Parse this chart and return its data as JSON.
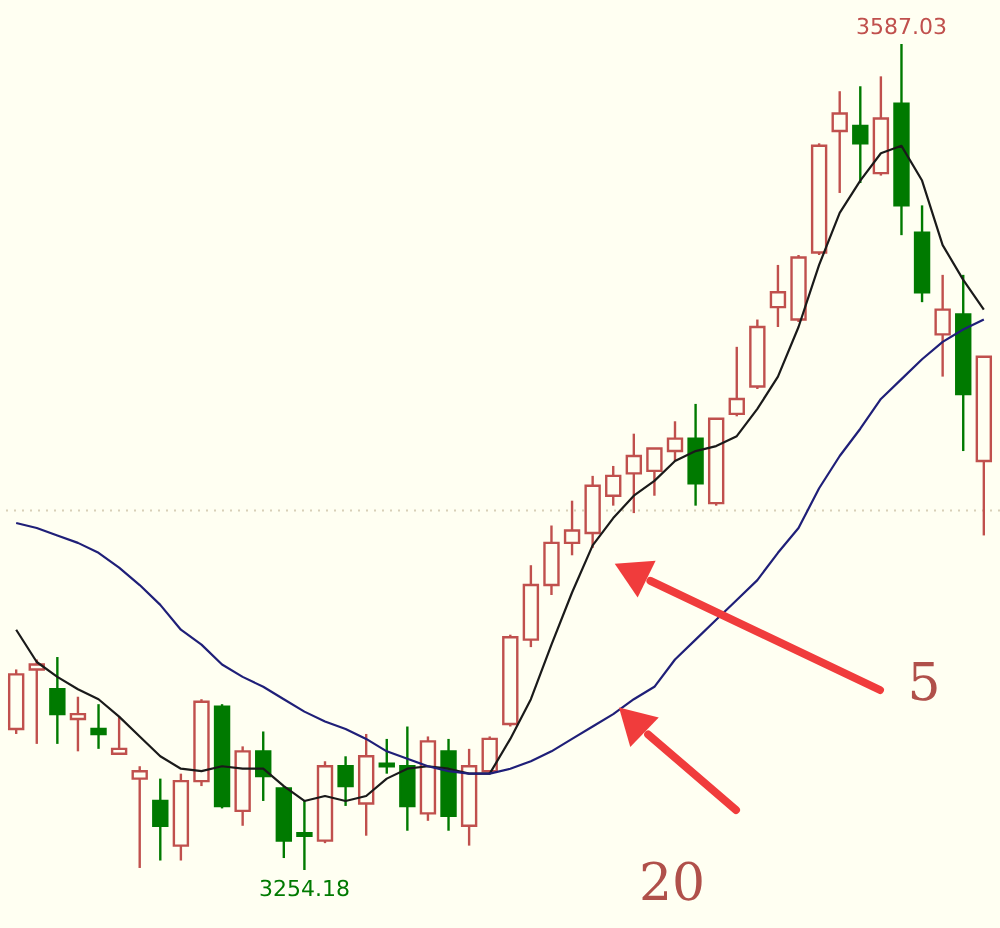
{
  "chart_data": {
    "type": "candlestick",
    "categories": [
      null,
      null,
      null,
      null,
      null,
      null,
      null,
      null,
      null,
      null,
      null,
      null,
      null,
      null,
      null,
      null,
      null,
      null,
      null,
      null,
      null,
      null,
      null,
      null,
      null,
      null,
      null,
      null,
      null,
      null,
      null,
      null,
      null,
      null,
      null,
      null,
      null,
      null,
      null,
      null,
      null,
      null,
      null,
      null,
      null,
      null,
      null,
      null
    ],
    "ohlc": [
      [
        3311,
        3335,
        3309,
        3333
      ],
      [
        3335,
        3339,
        3305,
        3337
      ],
      [
        3327,
        3340,
        3305,
        3317
      ],
      [
        3315,
        3324,
        3302,
        3317
      ],
      [
        3311,
        3321,
        3303,
        3309
      ],
      [
        3301,
        3316,
        3301,
        3303
      ],
      [
        3291,
        3296,
        3255,
        3294
      ],
      [
        3282,
        3291,
        3258,
        3272
      ],
      [
        3264,
        3293,
        3258,
        3290
      ],
      [
        3290,
        3323,
        3288,
        3322
      ],
      [
        3320,
        3321,
        3279,
        3280
      ],
      [
        3278,
        3304,
        3272,
        3302
      ],
      [
        3302,
        3310,
        3282,
        3292
      ],
      [
        3287,
        3288,
        3259,
        3266
      ],
      [
        3269,
        3282,
        3254.18,
        3268
      ],
      [
        3266,
        3298,
        3265,
        3296
      ],
      [
        3296,
        3300,
        3280,
        3288
      ],
      [
        3281,
        3309,
        3268,
        3300
      ],
      [
        3297,
        3307,
        3293,
        3296
      ],
      [
        3296,
        3312,
        3270,
        3280
      ],
      [
        3277,
        3308,
        3274,
        3306
      ],
      [
        3302,
        3307,
        3270,
        3276
      ],
      [
        3272,
        3303,
        3264,
        3296
      ],
      [
        3294,
        3308,
        3293,
        3307
      ],
      [
        3313,
        3349,
        3312,
        3348
      ],
      [
        3347,
        3377,
        3344,
        3369
      ],
      [
        3369,
        3393,
        3365,
        3386
      ],
      [
        3386,
        3403,
        3381,
        3391
      ],
      [
        3390,
        3413,
        3384,
        3409
      ],
      [
        3405,
        3417,
        3401,
        3413
      ],
      [
        3414,
        3430,
        3398,
        3421
      ],
      [
        3415,
        3424,
        3405,
        3424
      ],
      [
        3423,
        3435,
        3419,
        3428
      ],
      [
        3428,
        3442,
        3401,
        3410
      ],
      [
        3402,
        3436,
        3401,
        3436
      ],
      [
        3438,
        3465,
        3437,
        3444
      ],
      [
        3449,
        3476,
        3448,
        3473
      ],
      [
        3481,
        3498,
        3473,
        3487
      ],
      [
        3476,
        3502,
        3475,
        3501
      ],
      [
        3503,
        3547,
        3502,
        3546
      ],
      [
        3552,
        3568,
        3527,
        3559
      ],
      [
        3554,
        3570,
        3531,
        3547
      ],
      [
        3535,
        3574,
        3534,
        3557
      ],
      [
        3563,
        3587.03,
        3510,
        3522
      ],
      [
        3511,
        3522,
        3483,
        3487
      ],
      [
        3470,
        3494,
        3453,
        3480
      ],
      [
        3478,
        3494,
        3423,
        3446
      ],
      [
        3419,
        3461,
        3389,
        3461
      ]
    ],
    "colors": [
      "#c0504d",
      "#c0504d",
      "#007a00",
      "#c0504d",
      "#007a00",
      "#c0504d",
      "#c0504d",
      "#007a00",
      "#c0504d",
      "#c0504d",
      "#007a00",
      "#c0504d",
      "#007a00",
      "#007a00",
      "#007a00",
      "#c0504d",
      "#007a00",
      "#c0504d",
      "#007a00",
      "#007a00",
      "#c0504d",
      "#007a00",
      "#c0504d",
      "#c0504d",
      "#c0504d",
      "#c0504d",
      "#c0504d",
      "#c0504d",
      "#c0504d",
      "#c0504d",
      "#c0504d",
      "#c0504d",
      "#c0504d",
      "#007a00",
      "#c0504d",
      "#c0504d",
      "#c0504d",
      "#c0504d",
      "#c0504d",
      "#c0504d",
      "#c0504d",
      "#007a00",
      "#c0504d",
      "#007a00",
      "#007a00",
      "#c0504d",
      "#007a00",
      "#c0504d"
    ],
    "series": [
      {
        "type": "line",
        "color": "#1a1a1a",
        "values": [
          3351,
          3338,
          3332,
          3327,
          3323,
          3316,
          3308,
          3300,
          3295,
          3294,
          3296,
          3295,
          3295,
          3288,
          3282,
          3284,
          3282,
          3284,
          3291,
          3295,
          3296,
          3295,
          3293,
          3293,
          3307,
          3323,
          3345,
          3366,
          3385,
          3396,
          3405,
          3411,
          3419,
          3423,
          3425,
          3429,
          3440,
          3453,
          3473,
          3498,
          3519,
          3532,
          3543,
          3546,
          3532,
          3506,
          3492,
          3480
        ]
      },
      {
        "type": "line",
        "color": "#1f1f78",
        "values": [
          3394,
          3392,
          3389,
          3386,
          3382,
          3376,
          3369,
          3361,
          3351,
          3345,
          3337,
          3332,
          3328,
          3323,
          3318,
          3314,
          3311,
          3307,
          3302,
          3299,
          3296,
          3294,
          3293,
          3293,
          3295,
          3298,
          3302,
          3307,
          3312,
          3317,
          3323,
          3328,
          3339,
          3347,
          3355,
          3363,
          3371,
          3382,
          3392,
          3408,
          3421,
          3432,
          3444,
          3452,
          3460,
          3467,
          3472,
          3476
        ]
      }
    ],
    "ref_lines": [
      {
        "axis": "y",
        "value": 3399,
        "color": "#d8d0b8",
        "line_style": "dotted"
      }
    ],
    "annotations": [
      {
        "text": "3587.03",
        "y": 3587.03
      },
      {
        "text": "3254.18",
        "y": 3254.18
      },
      "5",
      "20"
    ]
  }
}
